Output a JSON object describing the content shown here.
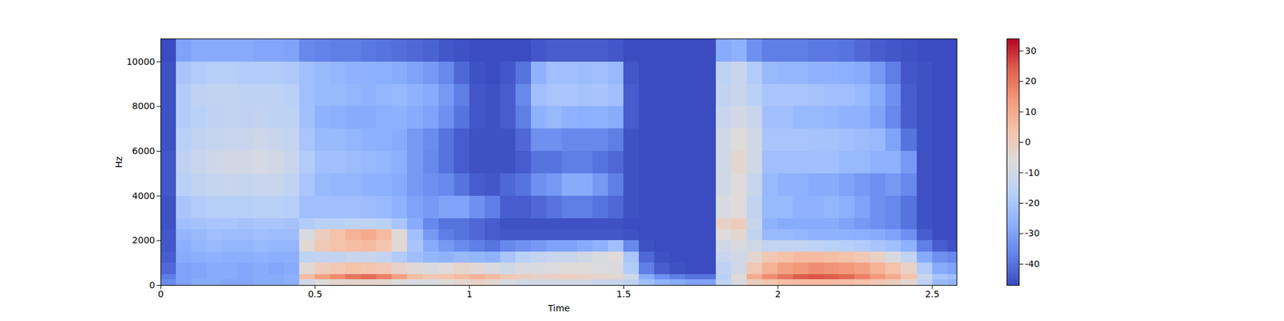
{
  "chart_data": {
    "type": "heatmap",
    "xlabel": "Time",
    "ylabel": "Hz",
    "xlim": [
      0,
      2.58
    ],
    "ylim": [
      0,
      11025
    ],
    "xticks": [
      0,
      0.5,
      1,
      1.5,
      2,
      2.5
    ],
    "yticks": [
      0,
      2000,
      4000,
      6000,
      8000,
      10000
    ],
    "time_edges": [
      0,
      0.05,
      0.1,
      0.15,
      0.2,
      0.25,
      0.3,
      0.35,
      0.4,
      0.45,
      0.5,
      0.55,
      0.6,
      0.65,
      0.7,
      0.75,
      0.8,
      0.85,
      0.9,
      0.95,
      1,
      1.05,
      1.1,
      1.15,
      1.2,
      1.25,
      1.3,
      1.35,
      1.4,
      1.45,
      1.5,
      1.55,
      1.6,
      1.65,
      1.7,
      1.75,
      1.8,
      1.85,
      1.9,
      1.95,
      2,
      2.05,
      2.1,
      2.15,
      2.2,
      2.25,
      2.3,
      2.35,
      2.4,
      2.45,
      2.5,
      2.55,
      2.58
    ],
    "freq_edges": [
      0,
      250,
      500,
      1000,
      1500,
      2000,
      2500,
      3000,
      4000,
      5000,
      6000,
      7000,
      8000,
      9000,
      10000,
      11025
    ],
    "values": [
      [
        -35,
        -38,
        -42,
        -44,
        -45,
        -45,
        -46,
        -46,
        -45,
        -45,
        -46,
        -46,
        -46,
        -46,
        -47
      ],
      [
        -30,
        -30,
        -30,
        -28,
        -27,
        -25,
        -22,
        -20,
        -16,
        -15,
        -16,
        -18,
        -18,
        -20,
        -30
      ],
      [
        -28,
        -29,
        -29,
        -27,
        -25,
        -24,
        -21,
        -18,
        -14,
        -12,
        -14,
        -16,
        -15,
        -18,
        -28
      ],
      [
        -28,
        -28,
        -28,
        -26,
        -24,
        -22,
        -20,
        -17,
        -13,
        -11,
        -13,
        -15,
        -14,
        -17,
        -28
      ],
      [
        -29,
        -28,
        -28,
        -27,
        -25,
        -23,
        -20,
        -17,
        -12,
        -10,
        -12,
        -14,
        -14,
        -17,
        -28
      ],
      [
        -29,
        -29,
        -29,
        -27,
        -25,
        -23,
        -21,
        -17,
        -13,
        -10,
        -12,
        -15,
        -15,
        -18,
        -28
      ],
      [
        -28,
        -28,
        -28,
        -26,
        -24,
        -22,
        -20,
        -16,
        -12,
        -9,
        -11,
        -14,
        -15,
        -18,
        -29
      ],
      [
        -28,
        -28,
        -29,
        -27,
        -25,
        -23,
        -20,
        -16,
        -12,
        -10,
        -12,
        -15,
        -15,
        -18,
        -29
      ],
      [
        -27,
        -27,
        -28,
        -27,
        -25,
        -23,
        -21,
        -17,
        -14,
        -12,
        -13,
        -15,
        -16,
        -19,
        -30
      ],
      [
        -10,
        5,
        -5,
        -15,
        -5,
        -8,
        -18,
        -22,
        -20,
        -18,
        -20,
        -22,
        -22,
        -22,
        -36
      ],
      [
        -6,
        12,
        0,
        -14,
        2,
        0,
        -16,
        -22,
        -24,
        -22,
        -24,
        -26,
        -24,
        -24,
        -37
      ],
      [
        -4,
        16,
        2,
        -14,
        4,
        4,
        -16,
        -22,
        -25,
        -22,
        -24,
        -27,
        -24,
        -25,
        -38
      ],
      [
        -3,
        20,
        4,
        -12,
        5,
        8,
        -15,
        -22,
        -25,
        -23,
        -25,
        -28,
        -25,
        -26,
        -38
      ],
      [
        -3,
        22,
        3,
        -12,
        6,
        10,
        -15,
        -23,
        -26,
        -24,
        -26,
        -28,
        -26,
        -26,
        -39
      ],
      [
        -4,
        18,
        2,
        -14,
        3,
        6,
        -16,
        -24,
        -27,
        -25,
        -27,
        -27,
        -25,
        -27,
        -40
      ],
      [
        -6,
        12,
        -2,
        -18,
        -5,
        -5,
        -20,
        -26,
        -28,
        -27,
        -28,
        -26,
        -24,
        -28,
        -41
      ],
      [
        -8,
        5,
        -5,
        -22,
        -20,
        -22,
        -28,
        -30,
        -32,
        -32,
        -32,
        -28,
        -26,
        -30,
        -42
      ],
      [
        -8,
        2,
        -8,
        -25,
        -28,
        -32,
        -36,
        -32,
        -34,
        -36,
        -35,
        -30,
        -28,
        -32,
        -43
      ],
      [
        -6,
        3,
        -6,
        -26,
        -32,
        -38,
        -40,
        -30,
        -36,
        -40,
        -40,
        -34,
        -32,
        -36,
        -45
      ],
      [
        -4,
        6,
        -3,
        -24,
        -35,
        -40,
        -40,
        -30,
        -40,
        -44,
        -44,
        -40,
        -38,
        -42,
        -46
      ],
      [
        -2,
        8,
        -5,
        -25,
        -38,
        -42,
        -42,
        -34,
        -44,
        -46,
        -46,
        -45,
        -45,
        -46,
        -47
      ],
      [
        -4,
        6,
        -8,
        -26,
        -40,
        -44,
        -44,
        -38,
        -45,
        -46,
        -46,
        -46,
        -46,
        -47,
        -47
      ],
      [
        -8,
        2,
        -10,
        -20,
        -36,
        -45,
        -46,
        -44,
        -42,
        -46,
        -46,
        -44,
        -44,
        -45,
        -47
      ],
      [
        -10,
        0,
        -8,
        -16,
        -34,
        -45,
        -46,
        -44,
        -40,
        -44,
        -42,
        -38,
        -36,
        -40,
        -47
      ],
      [
        -10,
        -2,
        -8,
        -14,
        -32,
        -45,
        -46,
        -42,
        -34,
        -40,
        -34,
        -26,
        -22,
        -26,
        -45
      ],
      [
        -10,
        -1,
        -7,
        -12,
        -30,
        -45,
        -46,
        -40,
        -32,
        -40,
        -34,
        -24,
        -20,
        -22,
        -44
      ],
      [
        -10,
        0,
        -6,
        -12,
        -30,
        -45,
        -46,
        -38,
        -28,
        -38,
        -36,
        -26,
        -20,
        -22,
        -44
      ],
      [
        -10,
        -1,
        -6,
        -10,
        -28,
        -45,
        -46,
        -38,
        -28,
        -38,
        -36,
        -27,
        -21,
        -23,
        -44
      ],
      [
        -12,
        -3,
        -7,
        -8,
        -26,
        -45,
        -46,
        -40,
        -32,
        -40,
        -36,
        -26,
        -20,
        -22,
        -44
      ],
      [
        -12,
        -4,
        -8,
        -6,
        -22,
        -45,
        -46,
        -42,
        -38,
        -42,
        -38,
        -28,
        -22,
        -24,
        -45
      ],
      [
        -15,
        -10,
        -18,
        -20,
        -36,
        -46,
        -47,
        -46,
        -46,
        -46,
        -46,
        -44,
        -44,
        -45,
        -47
      ],
      [
        -22,
        -28,
        -38,
        -42,
        -46,
        -47,
        -47,
        -47,
        -47,
        -47,
        -47,
        -47,
        -47,
        -47,
        -47
      ],
      [
        -26,
        -34,
        -44,
        -46,
        -47,
        -47,
        -47,
        -47,
        -47,
        -47,
        -47,
        -47,
        -47,
        -47,
        -47
      ],
      [
        -28,
        -38,
        -46,
        -47,
        -47,
        -47,
        -47,
        -47,
        -47,
        -47,
        -47,
        -47,
        -47,
        -47,
        -47
      ],
      [
        -30,
        -40,
        -47,
        -47,
        -47,
        -47,
        -47,
        -47,
        -47,
        -47,
        -47,
        -47,
        -47,
        -47,
        -47
      ],
      [
        -30,
        -40,
        -47,
        -47,
        -47,
        -47,
        -47,
        -47,
        -47,
        -47,
        -47,
        -47,
        -47,
        -47,
        -47
      ],
      [
        -14,
        -16,
        -15,
        -12,
        -10,
        -6,
        -2,
        -8,
        -10,
        -10,
        -10,
        -12,
        -14,
        -15,
        -28
      ],
      [
        -8,
        -6,
        -10,
        -10,
        -8,
        -4,
        0,
        -6,
        -6,
        -4,
        -6,
        -10,
        -12,
        -12,
        -26
      ],
      [
        0,
        10,
        2,
        -4,
        -10,
        -14,
        -12,
        -14,
        -12,
        -10,
        -10,
        -12,
        -16,
        -18,
        -34
      ],
      [
        3,
        16,
        8,
        2,
        -14,
        -24,
        -26,
        -24,
        -24,
        -22,
        -20,
        -22,
        -20,
        -24,
        -38
      ],
      [
        5,
        20,
        12,
        4,
        -14,
        -24,
        -28,
        -24,
        -26,
        -22,
        -20,
        -22,
        -20,
        -25,
        -38
      ],
      [
        6,
        24,
        14,
        6,
        -14,
        -25,
        -28,
        -26,
        -26,
        -22,
        -20,
        -24,
        -20,
        -25,
        -38
      ],
      [
        6,
        25,
        16,
        6,
        -15,
        -26,
        -28,
        -26,
        -28,
        -22,
        -21,
        -24,
        -21,
        -26,
        -39
      ],
      [
        6,
        24,
        15,
        5,
        -16,
        -26,
        -28,
        -25,
        -28,
        -22,
        -21,
        -25,
        -22,
        -26,
        -39
      ],
      [
        5,
        22,
        14,
        4,
        -17,
        -26,
        -30,
        -27,
        -30,
        -24,
        -22,
        -26,
        -22,
        -27,
        -40
      ],
      [
        4,
        18,
        12,
        2,
        -18,
        -27,
        -32,
        -30,
        -32,
        -24,
        -23,
        -26,
        -24,
        -28,
        -42
      ],
      [
        2,
        14,
        8,
        -2,
        -20,
        -28,
        -34,
        -34,
        -34,
        -26,
        -24,
        -30,
        -28,
        -32,
        -44
      ],
      [
        0,
        10,
        4,
        -8,
        -22,
        -30,
        -36,
        -36,
        -32,
        -26,
        -30,
        -36,
        -34,
        -38,
        -45
      ],
      [
        -4,
        4,
        -2,
        -14,
        -26,
        -34,
        -40,
        -40,
        -36,
        -32,
        -40,
        -44,
        -44,
        -45,
        -46
      ],
      [
        -15,
        -12,
        -18,
        -28,
        -38,
        -44,
        -46,
        -46,
        -46,
        -46,
        -46,
        -46,
        -46,
        -46,
        -47
      ],
      [
        -24,
        -20,
        -28,
        -34,
        -44,
        -47,
        -47,
        -47,
        -47,
        -47,
        -47,
        -47,
        -47,
        -47,
        -47
      ],
      [
        -26,
        -22,
        -30,
        -36,
        -46,
        -47,
        -47,
        -47,
        -47,
        -47,
        -47,
        -47,
        -47,
        -47,
        -47
      ]
    ],
    "colorbar": {
      "range": [
        -47,
        34
      ],
      "ticks": [
        -40,
        -30,
        -20,
        -10,
        0,
        10,
        20,
        30
      ]
    }
  }
}
